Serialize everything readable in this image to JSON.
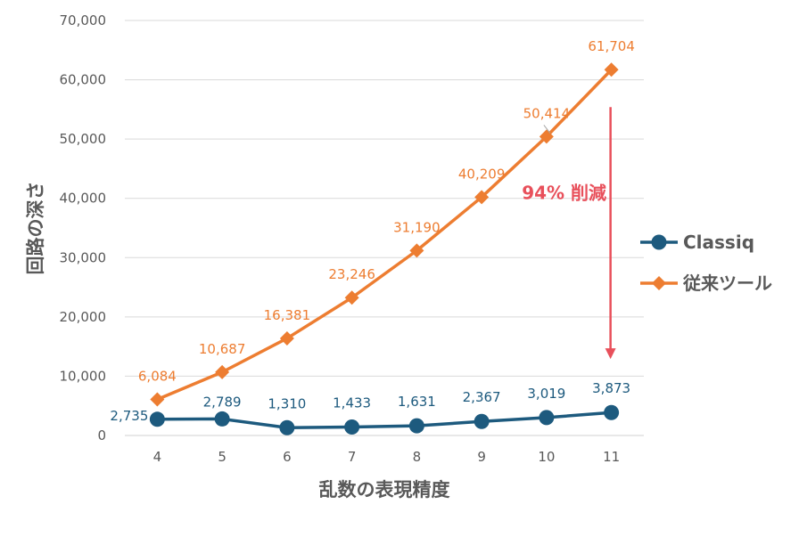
{
  "chart_data": {
    "type": "line",
    "title": "",
    "xlabel": "乱数の表現精度",
    "ylabel": "回路の深さ",
    "x": [
      4,
      5,
      6,
      7,
      8,
      9,
      10,
      11
    ],
    "x_tick_labels": [
      "4",
      "5",
      "6",
      "7",
      "8",
      "9",
      "10",
      "11"
    ],
    "ylim": [
      0,
      70000
    ],
    "y_ticks": [
      0,
      10000,
      20000,
      30000,
      40000,
      50000,
      60000,
      70000
    ],
    "y_tick_labels": [
      "0",
      "10,000",
      "20,000",
      "30,000",
      "40,000",
      "50,000",
      "60,000",
      "70,000"
    ],
    "grid": "horizontal",
    "legend_position": "right",
    "series": [
      {
        "name": "Classiq",
        "marker": "circle",
        "color": "#1d5a7e",
        "values": [
          2735,
          2789,
          1310,
          1433,
          1631,
          2367,
          3019,
          3873
        ],
        "data_labels": [
          "2,735",
          "2,789",
          "1,310",
          "1,433",
          "1,631",
          "2,367",
          "3,019",
          "3,873"
        ]
      },
      {
        "name": "従来ツール",
        "marker": "diamond",
        "color": "#ed7d31",
        "values": [
          6084,
          10687,
          16381,
          23246,
          31190,
          40209,
          50414,
          61704
        ],
        "data_labels": [
          "6,084",
          "10,687",
          "16,381",
          "23,246",
          "31,190",
          "40,209",
          "50,414",
          "61,704"
        ]
      }
    ],
    "annotation": {
      "text": "94% 削減",
      "color": "#e8505b",
      "arrow_from": 61704,
      "arrow_to": 3873
    }
  }
}
